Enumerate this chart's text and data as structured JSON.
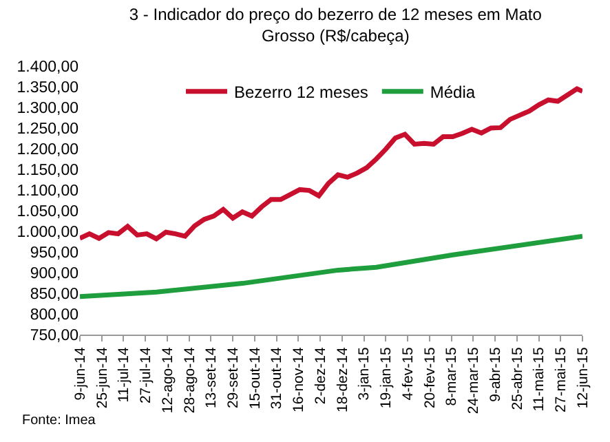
{
  "chart_data": {
    "type": "line",
    "title": "3 - Indicador do preço do bezerro de 12 meses em Mato Grosso (R$/cabeça)",
    "x": [
      "2014-06-09",
      "2014-06-16",
      "2014-06-23",
      "2014-06-30",
      "2014-07-07",
      "2014-07-14",
      "2014-07-21",
      "2014-07-28",
      "2014-08-04",
      "2014-08-11",
      "2014-08-18",
      "2014-08-25",
      "2014-09-01",
      "2014-09-08",
      "2014-09-15",
      "2014-09-22",
      "2014-09-29",
      "2014-10-06",
      "2014-10-13",
      "2014-10-20",
      "2014-10-27",
      "2014-11-03",
      "2014-11-10",
      "2014-11-17",
      "2014-11-24",
      "2014-12-01",
      "2014-12-08",
      "2014-12-15",
      "2014-12-22",
      "2014-12-29",
      "2015-01-05",
      "2015-01-12",
      "2015-01-19",
      "2015-01-26",
      "2015-02-02",
      "2015-02-09",
      "2015-02-16",
      "2015-02-23",
      "2015-03-02",
      "2015-03-09",
      "2015-03-16",
      "2015-03-23",
      "2015-03-30",
      "2015-04-06",
      "2015-04-13",
      "2015-04-20",
      "2015-04-27",
      "2015-05-04",
      "2015-05-11",
      "2015-05-18",
      "2015-05-25",
      "2015-06-01",
      "2015-06-08",
      "2015-06-12"
    ],
    "series": [
      {
        "name": "Bezerro 12 meses",
        "color": "#c8102e",
        "values": [
          983,
          994,
          983,
          997,
          994,
          1012,
          991,
          994,
          982,
          998,
          994,
          988,
          1013,
          1029,
          1037,
          1053,
          1032,
          1047,
          1037,
          1059,
          1077,
          1077,
          1089,
          1101,
          1099,
          1086,
          1116,
          1137,
          1131,
          1141,
          1154,
          1175,
          1199,
          1226,
          1235,
          1211,
          1213,
          1211,
          1229,
          1229,
          1237,
          1247,
          1238,
          1250,
          1251,
          1271,
          1281,
          1291,
          1306,
          1318,
          1315,
          1330,
          1345,
          1339
        ]
      },
      {
        "name": "Média",
        "color": "#1e9e3c",
        "x": [
          "2014-06-09",
          "2014-08-04",
          "2014-10-06",
          "2014-12-15",
          "2015-01-12",
          "2015-03-09",
          "2015-06-12"
        ],
        "values": [
          842,
          853,
          874,
          906,
          913,
          943,
          988
        ]
      }
    ],
    "ylim": [
      750,
      1400
    ],
    "yticks": [
      {
        "value": 750,
        "label": "750,00"
      },
      {
        "value": 800,
        "label": "800,00"
      },
      {
        "value": 850,
        "label": "850,00"
      },
      {
        "value": 900,
        "label": "900,00"
      },
      {
        "value": 950,
        "label": "950,00"
      },
      {
        "value": 1000,
        "label": "1.000,00"
      },
      {
        "value": 1050,
        "label": "1.050,00"
      },
      {
        "value": 1100,
        "label": "1.100,00"
      },
      {
        "value": 1150,
        "label": "1.150,00"
      },
      {
        "value": 1200,
        "label": "1.200,00"
      },
      {
        "value": 1250,
        "label": "1.250,00"
      },
      {
        "value": 1300,
        "label": "1.300,00"
      },
      {
        "value": 1350,
        "label": "1.350,00"
      },
      {
        "value": 1400,
        "label": "1.400,00"
      }
    ],
    "xlim": [
      "2014-06-09",
      "2015-06-12"
    ],
    "xticks": [
      {
        "value": "2014-06-09",
        "label": "9-jun-14"
      },
      {
        "value": "2014-06-25",
        "label": "25-jun-14"
      },
      {
        "value": "2014-07-11",
        "label": "11-jul-14"
      },
      {
        "value": "2014-07-27",
        "label": "27-jul-14"
      },
      {
        "value": "2014-08-12",
        "label": "12-ago-14"
      },
      {
        "value": "2014-08-28",
        "label": "28-ago-14"
      },
      {
        "value": "2014-09-13",
        "label": "13-set-14"
      },
      {
        "value": "2014-09-29",
        "label": "29-set-14"
      },
      {
        "value": "2014-10-15",
        "label": "15-out-14"
      },
      {
        "value": "2014-10-31",
        "label": "31-out-14"
      },
      {
        "value": "2014-11-16",
        "label": "16-nov-14"
      },
      {
        "value": "2014-12-02",
        "label": "2-dez-14"
      },
      {
        "value": "2014-12-18",
        "label": "18-dez-14"
      },
      {
        "value": "2015-01-03",
        "label": "3-jan-15"
      },
      {
        "value": "2015-01-19",
        "label": "19-jan-15"
      },
      {
        "value": "2015-02-04",
        "label": "4-fev-15"
      },
      {
        "value": "2015-02-20",
        "label": "20-fev-15"
      },
      {
        "value": "2015-03-08",
        "label": "8-mar-15"
      },
      {
        "value": "2015-03-24",
        "label": "24-mar-15"
      },
      {
        "value": "2015-04-09",
        "label": "9-abr-15"
      },
      {
        "value": "2015-04-25",
        "label": "25-abr-15"
      },
      {
        "value": "2015-05-11",
        "label": "11-mai-15"
      },
      {
        "value": "2015-05-27",
        "label": "27-mai-15"
      },
      {
        "value": "2015-06-12",
        "label": "12-jun-15"
      }
    ],
    "legend": "top",
    "marker": "none",
    "line_style": "solid",
    "annotations": [
      "Fonte: Imea"
    ]
  }
}
